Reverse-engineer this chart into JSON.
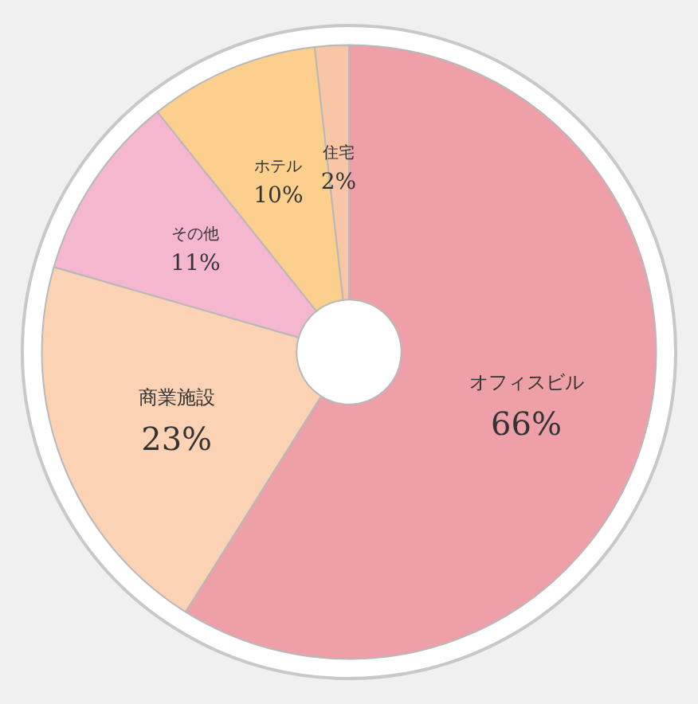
{
  "chart_data": {
    "type": "donut",
    "categories": [
      "オフィスビル",
      "商業施設",
      "その他",
      "ホテル",
      "住宅"
    ],
    "values": [
      66,
      23,
      11,
      10,
      2
    ],
    "value_labels": [
      "66%",
      "23%",
      "11%",
      "10%",
      "2%"
    ],
    "colors": [
      "#ef9fa8",
      "#fbd2b4",
      "#f5b6d0",
      "#fccf8c",
      "#f8c6a6"
    ],
    "legend": false
  }
}
